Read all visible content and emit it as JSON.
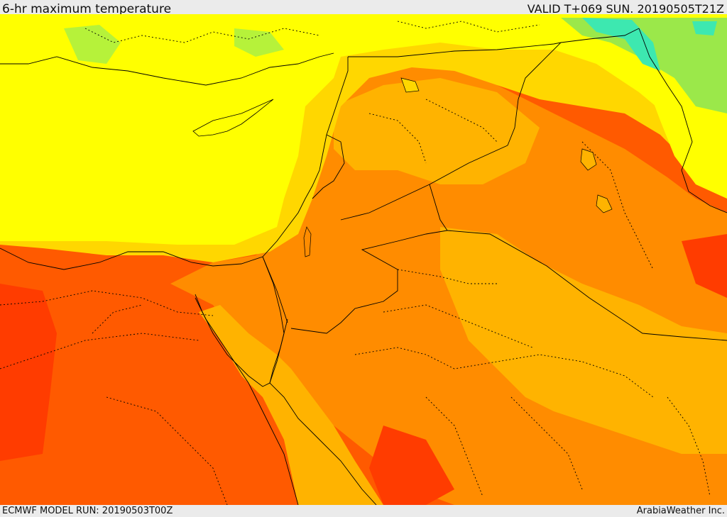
{
  "header": {
    "title": "6-hr maximum temperature",
    "valid": "VALID T+069 SUN. 20190505T21Z"
  },
  "footer": {
    "model_run": "ECMWF MODEL RUN: 20190503T00Z",
    "credit": "ArabiaWeather Inc."
  },
  "map": {
    "type": "temperature-field",
    "colors": {
      "cool_green": "#9be84a",
      "cyan": "#3de8b0",
      "yellow": "#ffff00",
      "gold": "#ffd700",
      "amber": "#ffb300",
      "orange": "#ff8c00",
      "red_orange": "#ff5a00",
      "border": "#000000"
    }
  }
}
